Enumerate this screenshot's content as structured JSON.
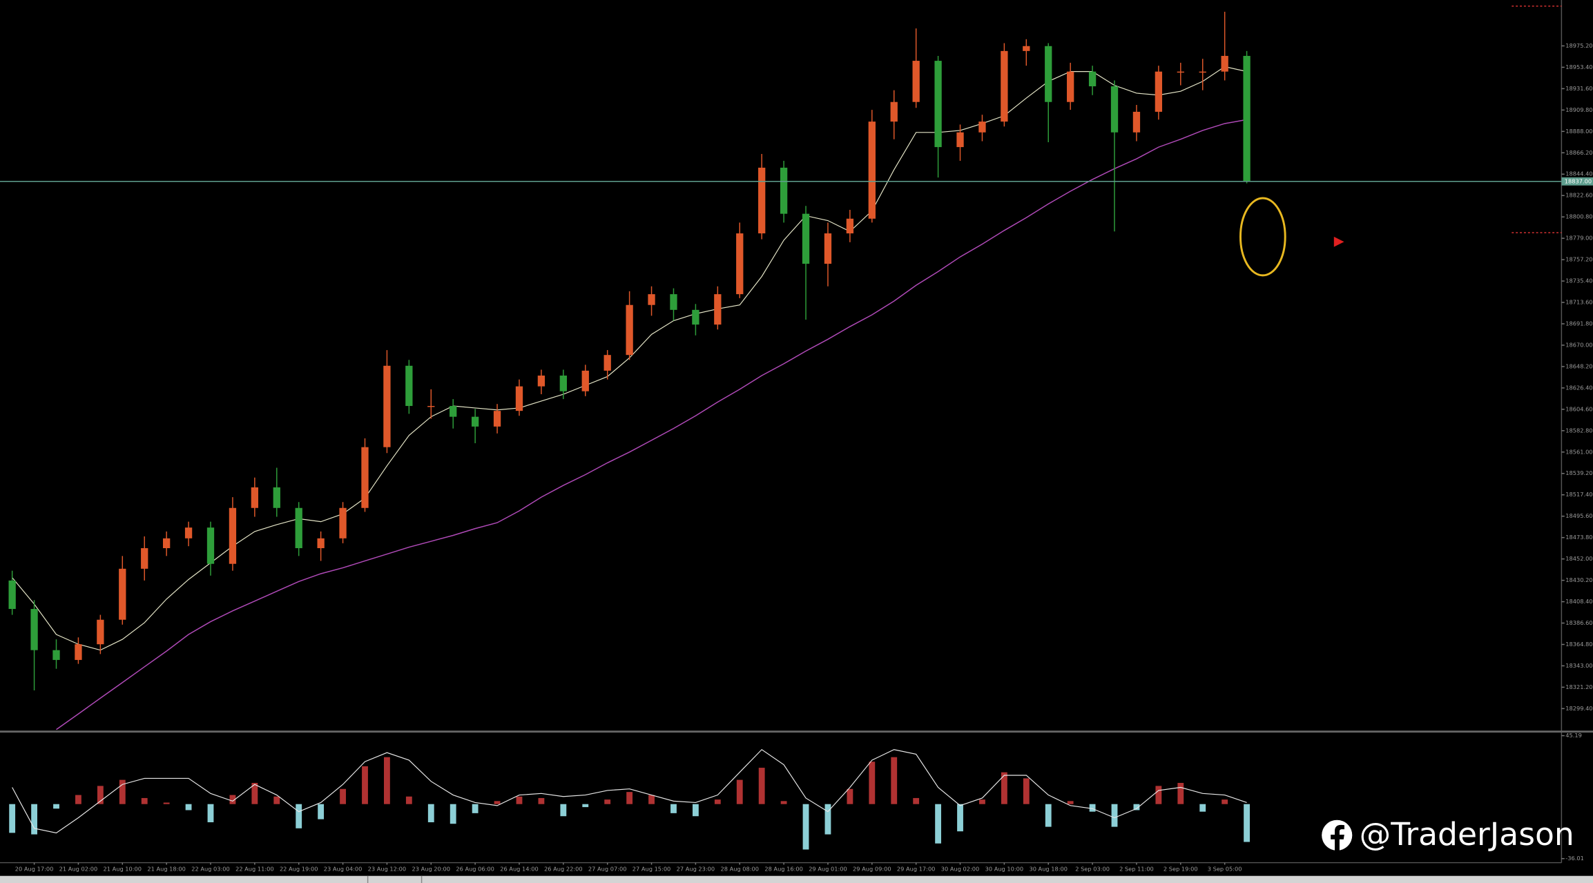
{
  "chart_data": [
    {
      "type": "candlestick",
      "open": [
        18430,
        18401,
        18359,
        18349,
        18365,
        18390,
        18442,
        18463,
        18473,
        18484,
        18447,
        18504,
        18525,
        18504,
        18463,
        18473,
        18504,
        18566,
        18649,
        18608,
        18608,
        18597,
        18587,
        18603,
        18628,
        18639,
        18623,
        18644,
        18660,
        18711,
        18722,
        18706,
        18691,
        18722,
        18784,
        18851,
        18804,
        18753,
        18784,
        18799,
        18898,
        18918,
        18960,
        18872,
        18887,
        18898,
        18970,
        18975,
        18918,
        18949,
        18934,
        18887,
        18908,
        18949,
        18949,
        18949,
        18965
      ],
      "high": [
        18440,
        18410,
        18370,
        18372,
        18395,
        18455,
        18475,
        18480,
        18490,
        18490,
        18515,
        18535,
        18545,
        18510,
        18480,
        18510,
        18575,
        18665,
        18655,
        18625,
        18615,
        18605,
        18610,
        18635,
        18645,
        18645,
        18650,
        18665,
        18725,
        18730,
        18728,
        18712,
        18730,
        18795,
        18865,
        18858,
        18812,
        18795,
        18808,
        18910,
        18930,
        18993,
        18965,
        18895,
        18905,
        18978,
        18982,
        18978,
        18958,
        18955,
        18940,
        18915,
        18955,
        18958,
        18962,
        19010,
        18970
      ],
      "low": [
        18395,
        18318,
        18340,
        18345,
        18355,
        18385,
        18430,
        18455,
        18465,
        18435,
        18440,
        18495,
        18495,
        18455,
        18450,
        18468,
        18500,
        18560,
        18600,
        18595,
        18585,
        18570,
        18580,
        18598,
        18620,
        18615,
        18618,
        18635,
        18655,
        18700,
        18695,
        18680,
        18686,
        18718,
        18778,
        18795,
        18696,
        18730,
        18775,
        18795,
        18880,
        18912,
        18841,
        18858,
        18878,
        18893,
        18955,
        18877,
        18910,
        18925,
        18786,
        18878,
        18900,
        18935,
        18930,
        18940,
        18835
      ],
      "close": [
        18401,
        18359,
        18349,
        18365,
        18390,
        18442,
        18463,
        18473,
        18484,
        18447,
        18504,
        18525,
        18504,
        18463,
        18473,
        18504,
        18566,
        18649,
        18608,
        18608,
        18597,
        18587,
        18603,
        18628,
        18639,
        18623,
        18644,
        18660,
        18711,
        18722,
        18706,
        18691,
        18722,
        18784,
        18851,
        18804,
        18753,
        18784,
        18799,
        18898,
        18918,
        18960,
        18872,
        18887,
        18898,
        18970,
        18975,
        18918,
        18949,
        18934,
        18887,
        18908,
        18949,
        18949,
        18949,
        18965,
        18837
      ],
      "up_color": "#e0582a",
      "down_color": "#2e9e3a",
      "lines": [
        {
          "color": "#e6e6c8",
          "values": [
            18433,
            18406,
            18375,
            18365,
            18359,
            18370,
            18387,
            18411,
            18431,
            18448,
            18465,
            18480,
            18487,
            18493,
            18490,
            18498,
            18514,
            18547,
            18578,
            18597,
            18608,
            18606,
            18604,
            18606,
            18613,
            18620,
            18629,
            18638,
            18657,
            18681,
            18695,
            18702,
            18707,
            18711,
            18740,
            18777,
            18802,
            18797,
            18786,
            18807,
            18849,
            18887,
            18887,
            18889,
            18896,
            18904,
            18922,
            18939,
            18949,
            18949,
            18935,
            18927,
            18925,
            18929,
            18939,
            18954,
            18949
          ]
        },
        {
          "color": "#b04ab8",
          "values": [
            null,
            null,
            18278,
            18294,
            18310,
            18326,
            18342,
            18358,
            18375,
            18388,
            18399,
            18409,
            18419,
            18429,
            18437,
            18443,
            18450,
            18457,
            18464,
            18470,
            18476,
            18483,
            18489,
            18501,
            18515,
            18527,
            18538,
            18550,
            18561,
            18573,
            18585,
            18598,
            18612,
            18625,
            18639,
            18651,
            18664,
            18676,
            18689,
            18701,
            18715,
            18731,
            18745,
            18760,
            18773,
            18787,
            18800,
            18814,
            18827,
            18839,
            18850,
            18860,
            18872,
            18880,
            18889,
            18896,
            18900
          ]
        }
      ],
      "price_line": {
        "value": 18837,
        "label": "18837.00",
        "color": "#5f9f8f"
      },
      "ylim": [
        18278,
        19022
      ],
      "yticks": [
        {
          "value": 18299.4,
          "label": "18299.40"
        },
        {
          "value": 18321.2,
          "label": "18321.20"
        },
        {
          "value": 18343,
          "label": "18343.00"
        },
        {
          "value": 18364.8,
          "label": "18364.80"
        },
        {
          "value": 18386.6,
          "label": "18386.60"
        },
        {
          "value": 18408.4,
          "label": "18408.40"
        },
        {
          "value": 18430.2,
          "label": "18430.20"
        },
        {
          "value": 18452,
          "label": "18452.00"
        },
        {
          "value": 18473.8,
          "label": "18473.80"
        },
        {
          "value": 18495.6,
          "label": "18495.60"
        },
        {
          "value": 18517.4,
          "label": "18517.40"
        },
        {
          "value": 18539.2,
          "label": "18539.20"
        },
        {
          "value": 18561,
          "label": "18561.00"
        },
        {
          "value": 18582.8,
          "label": "18582.80"
        },
        {
          "value": 18604.6,
          "label": "18604.60"
        },
        {
          "value": 18626.4,
          "label": "18626.40"
        },
        {
          "value": 18648.2,
          "label": "18648.20"
        },
        {
          "value": 18670,
          "label": "18670.00"
        },
        {
          "value": 18691.8,
          "label": "18691.80"
        },
        {
          "value": 18713.6,
          "label": "18713.60"
        },
        {
          "value": 18735.4,
          "label": "18735.40"
        },
        {
          "value": 18757.2,
          "label": "18757.20"
        },
        {
          "value": 18779,
          "label": "18779.00"
        },
        {
          "value": 18800.8,
          "label": "18800.80"
        },
        {
          "value": 18822.6,
          "label": "18822.60"
        },
        {
          "value": 18844.4,
          "label": "18844.40"
        },
        {
          "value": 18866.2,
          "label": "18866.20"
        },
        {
          "value": 18888,
          "label": "18888.00"
        },
        {
          "value": 18909.8,
          "label": "18909.80"
        },
        {
          "value": 18931.6,
          "label": "18931.60"
        },
        {
          "value": 18953.4,
          "label": "18953.40"
        },
        {
          "value": 18975.2,
          "label": "18975.20"
        }
      ]
    },
    {
      "type": "histogram-macd",
      "categories": [
        null,
        "20 Aug 17:00",
        null,
        "21 Aug 02:00",
        null,
        "21 Aug 10:00",
        null,
        "21 Aug 18:00",
        null,
        "22 Aug 03:00",
        null,
        "22 Aug 11:00",
        null,
        "22 Aug 19:00",
        null,
        "23 Aug 04:00",
        null,
        "23 Aug 12:00",
        null,
        "23 Aug 20:00",
        null,
        "26 Aug 06:00",
        null,
        "26 Aug 14:00",
        null,
        "26 Aug 22:00",
        null,
        "27 Aug 07:00",
        null,
        "27 Aug 15:00",
        null,
        "27 Aug 23:00",
        null,
        "28 Aug 08:00",
        null,
        "28 Aug 16:00",
        null,
        "29 Aug 01:00",
        null,
        "29 Aug 09:00",
        null,
        "29 Aug 17:00",
        null,
        "30 Aug 02:00",
        null,
        "30 Aug 10:00",
        null,
        "30 Aug 18:00",
        null,
        "2 Sep 03:00",
        null,
        "2 Sep 11:00",
        null,
        "2 Sep 19:00",
        null,
        "3 Sep 05:00",
        null
      ],
      "values": [
        -19,
        -20,
        -3,
        6,
        12,
        16,
        4,
        1,
        -4,
        -12,
        6,
        14,
        5,
        -16,
        -10,
        10,
        25,
        31,
        5,
        -12,
        -13,
        -6,
        2,
        5,
        4,
        -8,
        -2,
        3,
        8,
        6,
        -6,
        -8,
        3,
        16,
        24,
        2,
        -30,
        -20,
        10,
        28,
        31,
        4,
        -26,
        -18,
        3,
        21,
        17,
        -15,
        2,
        -5,
        -15,
        -4,
        12,
        14,
        -5,
        3,
        -25
      ],
      "pos_color": "#b03232",
      "neg_color": "#8ccfd6",
      "line": {
        "color": "#e8e8e8",
        "values": [
          11,
          -16,
          -19,
          -9,
          2,
          13,
          17,
          17,
          17,
          7,
          2,
          13,
          6,
          -5,
          1,
          13,
          28,
          34,
          29,
          15,
          6,
          1,
          -1,
          6,
          7,
          5,
          6,
          9,
          10,
          6,
          2,
          1,
          6,
          21,
          36,
          26,
          4,
          -5,
          11,
          29,
          36,
          33,
          11,
          -1,
          4,
          19,
          19,
          6,
          -1,
          -3,
          -9,
          -3,
          9,
          11,
          7,
          6,
          1
        ]
      },
      "ylim": [
        -36.01,
        45.19
      ],
      "yticks": [
        45.19,
        -36.01
      ]
    }
  ],
  "watermark": "@TraderJason"
}
